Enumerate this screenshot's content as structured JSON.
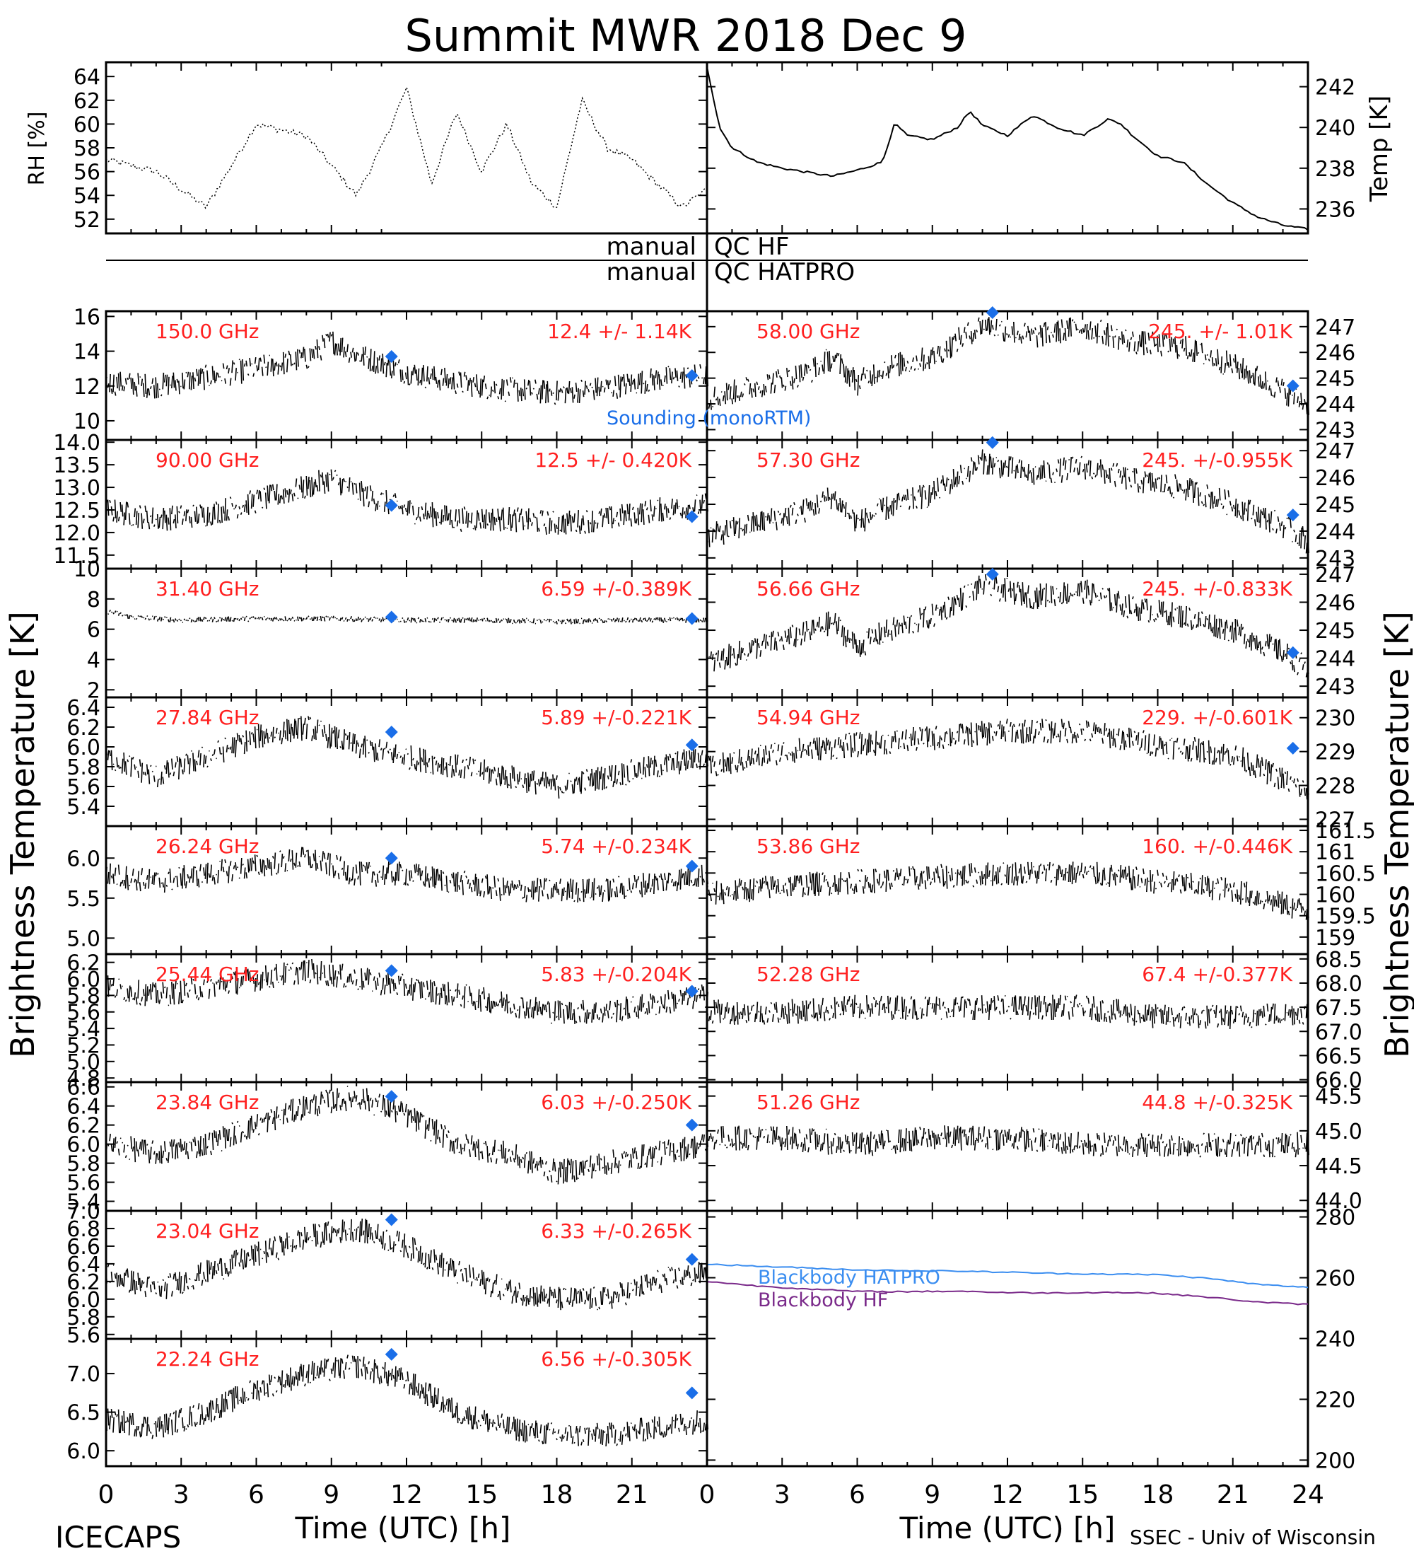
{
  "title": "Summit MWR 2018 Dec  9",
  "footer": {
    "left": "ICECAPS",
    "right": "SSEC - Univ of Wisconsin"
  },
  "xlabel": "Time (UTC) [h]",
  "x_ticks": [
    "0",
    "3",
    "6",
    "9",
    "12",
    "15",
    "18",
    "21",
    "24"
  ],
  "y_label_left": "Brightness Temperature [K]",
  "y_label_right": "Brightness Temperature [K]",
  "colors": {
    "text_red": "#ff2020",
    "marker_blue": "#1a6ee8",
    "hatpro_line": "#3a8df0",
    "hf_line": "#7a2a8a",
    "scatter": "#000000"
  },
  "qc": {
    "hf_left": "manual",
    "hf_right": "QC HF",
    "hatpro_left": "manual",
    "hatpro_right": "QC HATPRO"
  },
  "legend": {
    "sounding": "Sounding (monoRTM)",
    "bb_hatpro": "Blackbody HATPRO",
    "bb_hf": "Blackbody HF"
  },
  "chart_data": [
    {
      "type": "line",
      "panel": "rh",
      "ylabel": "RH [%]",
      "xlim": [
        0,
        12
      ],
      "ylim": [
        50.8,
        65.2
      ],
      "y_ticks": [
        "52",
        "54",
        "56",
        "58",
        "60",
        "62",
        "64"
      ],
      "y_tick_values": [
        52,
        54,
        56,
        58,
        60,
        62,
        64
      ],
      "x": [
        0,
        1,
        2,
        3,
        4,
        5,
        5.5,
        6,
        6.5,
        7,
        7.5,
        8,
        8.5,
        9,
        9.5,
        10,
        10.5,
        11,
        11.5,
        12
      ],
      "y": [
        57,
        56,
        53,
        60,
        59,
        54,
        58,
        63,
        55,
        61,
        56,
        60,
        55,
        53,
        62,
        58,
        57,
        55,
        53,
        54.5
      ]
    },
    {
      "type": "line",
      "panel": "temp",
      "ylabel": "Temp [K]",
      "xlim": [
        0,
        24
      ],
      "ylim": [
        234.8,
        243.2
      ],
      "y_ticks": [
        "236",
        "238",
        "240",
        "242"
      ],
      "y_tick_values": [
        236,
        238,
        240,
        242
      ],
      "x": [
        0,
        0.5,
        1,
        2,
        3,
        4,
        5,
        6,
        7,
        7.5,
        8,
        9,
        10,
        10.5,
        11,
        12,
        13,
        14,
        15,
        16,
        16.5,
        17,
        18,
        19,
        20,
        21,
        22,
        23,
        24
      ],
      "y": [
        243,
        240,
        239,
        238.3,
        238,
        237.8,
        237.6,
        237.9,
        238.3,
        240.2,
        239.6,
        239.4,
        240,
        240.8,
        240.1,
        239.6,
        240.6,
        240,
        239.6,
        240.4,
        240.2,
        239.6,
        238.6,
        238.3,
        237.2,
        236.3,
        235.6,
        235.2,
        235
      ]
    },
    {
      "type": "scatter",
      "panel": "L1",
      "freq": "150.0 GHz",
      "stats": "12.4 +/-  1.14K",
      "ylim": [
        8.9,
        16.3
      ],
      "y_ticks": [
        "10",
        "12",
        "14",
        "16"
      ],
      "y_tick_values": [
        10,
        12,
        14,
        16
      ],
      "sounding": [
        [
          11.4,
          13.7
        ],
        [
          23.4,
          12.6
        ]
      ],
      "x": [
        0,
        2,
        4,
        6,
        8,
        9,
        10,
        12,
        14,
        16,
        18,
        20,
        22,
        24
      ],
      "y": [
        12.2,
        12.0,
        12.5,
        13.0,
        13.6,
        14.6,
        13.8,
        12.8,
        12.2,
        11.8,
        11.6,
        11.9,
        12.4,
        12.6
      ]
    },
    {
      "type": "scatter",
      "panel": "L2",
      "freq": "90.00 GHz",
      "stats": "12.5 +/- 0.420K",
      "ylim": [
        11.2,
        14.05
      ],
      "y_ticks": [
        "11.5",
        "12.0",
        "12.5",
        "13.0",
        "13.5",
        "14.0"
      ],
      "y_tick_values": [
        11.5,
        12,
        12.5,
        13,
        13.5,
        14
      ],
      "sounding": [
        [
          11.4,
          12.6
        ],
        [
          23.4,
          12.35
        ]
      ],
      "x": [
        0,
        2,
        4,
        6,
        8,
        9,
        10,
        12,
        14,
        16,
        18,
        20,
        22,
        24
      ],
      "y": [
        12.5,
        12.3,
        12.4,
        12.7,
        13.0,
        13.2,
        12.9,
        12.5,
        12.3,
        12.3,
        12.2,
        12.3,
        12.5,
        12.6
      ]
    },
    {
      "type": "scatter",
      "panel": "L3",
      "freq": "31.40 GHz",
      "stats": "6.59 +/-0.389K",
      "ylim": [
        1.5,
        10.0
      ],
      "y_ticks": [
        "2",
        "4",
        "6",
        "8",
        "10"
      ],
      "y_tick_values": [
        2,
        4,
        6,
        8,
        10
      ],
      "sounding": [
        [
          11.4,
          6.8
        ],
        [
          23.4,
          6.7
        ]
      ],
      "x": [
        0,
        1,
        3,
        6,
        9,
        12,
        15,
        18,
        21,
        24
      ],
      "y": [
        7.2,
        6.8,
        6.6,
        6.7,
        6.7,
        6.6,
        6.6,
        6.5,
        6.6,
        6.6
      ]
    },
    {
      "type": "scatter",
      "panel": "L4",
      "freq": "27.84 GHz",
      "stats": "5.89 +/-0.221K",
      "ylim": [
        5.2,
        6.5
      ],
      "y_ticks": [
        "5.4",
        "5.6",
        "5.8",
        "6.0",
        "6.2",
        "6.4"
      ],
      "y_tick_values": [
        5.4,
        5.6,
        5.8,
        6.0,
        6.2,
        6.4
      ],
      "sounding": [
        [
          11.4,
          6.15
        ],
        [
          23.4,
          6.02
        ]
      ],
      "x": [
        0,
        2,
        4,
        6,
        8,
        10,
        12,
        14,
        16,
        18,
        20,
        22,
        24
      ],
      "y": [
        5.9,
        5.7,
        5.9,
        6.1,
        6.2,
        6.0,
        5.9,
        5.8,
        5.7,
        5.6,
        5.7,
        5.8,
        5.9
      ]
    },
    {
      "type": "scatter",
      "panel": "L5",
      "freq": "26.24 GHz",
      "stats": "5.74 +/-0.234K",
      "ylim": [
        4.8,
        6.4
      ],
      "y_ticks": [
        "5.0",
        "5.5",
        "6.0"
      ],
      "y_tick_values": [
        5,
        5.5,
        6
      ],
      "sounding": [
        [
          11.4,
          6.0
        ],
        [
          23.4,
          5.9
        ]
      ],
      "x": [
        0,
        2,
        4,
        6,
        8,
        10,
        12,
        14,
        16,
        18,
        20,
        22,
        24
      ],
      "y": [
        5.8,
        5.7,
        5.8,
        5.9,
        6.0,
        5.8,
        5.8,
        5.7,
        5.6,
        5.6,
        5.6,
        5.7,
        5.8
      ]
    },
    {
      "type": "scatter",
      "panel": "L6",
      "freq": "25.44 GHz",
      "stats": "5.83 +/-0.204K",
      "ylim": [
        4.75,
        6.3
      ],
      "y_ticks": [
        "4.8",
        "5.0",
        "5.2",
        "5.4",
        "5.6",
        "5.8",
        "6.0",
        "6.2"
      ],
      "y_tick_values": [
        4.8,
        5.0,
        5.2,
        5.4,
        5.6,
        5.8,
        6.0,
        6.2
      ],
      "sounding": [
        [
          11.4,
          6.1
        ],
        [
          23.4,
          5.85
        ]
      ],
      "x": [
        0,
        2,
        4,
        6,
        8,
        10,
        12,
        14,
        16,
        18,
        20,
        22,
        24
      ],
      "y": [
        5.9,
        5.8,
        5.9,
        6.0,
        6.1,
        6.0,
        5.9,
        5.8,
        5.7,
        5.6,
        5.6,
        5.7,
        5.8
      ]
    },
    {
      "type": "scatter",
      "panel": "L7",
      "freq": "23.84 GHz",
      "stats": "6.03 +/-0.250K",
      "ylim": [
        5.3,
        6.65
      ],
      "y_ticks": [
        "5.4",
        "5.6",
        "5.8",
        "6.0",
        "6.2",
        "6.4",
        "6.6"
      ],
      "y_tick_values": [
        5.4,
        5.6,
        5.8,
        6.0,
        6.2,
        6.4,
        6.6
      ],
      "sounding": [
        [
          11.4,
          6.5
        ],
        [
          23.4,
          6.2
        ]
      ],
      "x": [
        0,
        2,
        4,
        6,
        8,
        10,
        12,
        14,
        16,
        18,
        20,
        22,
        24
      ],
      "y": [
        6.0,
        5.9,
        6.0,
        6.2,
        6.4,
        6.5,
        6.3,
        6.0,
        5.9,
        5.7,
        5.8,
        5.9,
        6.0
      ]
    },
    {
      "type": "scatter",
      "panel": "L8",
      "freq": "23.04 GHz",
      "stats": "6.33 +/-0.265K",
      "ylim": [
        5.55,
        7.0
      ],
      "y_ticks": [
        "5.6",
        "5.8",
        "6.0",
        "6.2",
        "6.4",
        "6.6",
        "6.8",
        "7.0"
      ],
      "y_tick_values": [
        5.6,
        5.8,
        6.0,
        6.2,
        6.4,
        6.6,
        6.8,
        7.0
      ],
      "sounding": [
        [
          11.4,
          6.9
        ],
        [
          23.4,
          6.45
        ]
      ],
      "x": [
        0,
        2,
        4,
        6,
        8,
        10,
        12,
        14,
        16,
        18,
        20,
        22,
        24
      ],
      "y": [
        6.3,
        6.1,
        6.3,
        6.5,
        6.7,
        6.8,
        6.6,
        6.3,
        6.1,
        6.0,
        6.0,
        6.2,
        6.3
      ]
    },
    {
      "type": "scatter",
      "panel": "L9",
      "freq": "22.24 GHz",
      "stats": "6.56 +/-0.305K",
      "ylim": [
        5.8,
        7.45
      ],
      "y_ticks": [
        "6.0",
        "6.5",
        "7.0"
      ],
      "y_tick_values": [
        6,
        6.5,
        7
      ],
      "sounding": [
        [
          11.4,
          7.25
        ],
        [
          23.4,
          6.75
        ]
      ],
      "x": [
        0,
        2,
        4,
        6,
        8,
        10,
        12,
        14,
        16,
        18,
        20,
        22,
        24
      ],
      "y": [
        6.4,
        6.3,
        6.5,
        6.8,
        7.0,
        7.1,
        6.9,
        6.5,
        6.3,
        6.2,
        6.2,
        6.3,
        6.4
      ]
    },
    {
      "type": "scatter",
      "panel": "R1",
      "freq": "58.00 GHz",
      "stats": "245. +/- 1.01K",
      "ylim": [
        242.6,
        247.6
      ],
      "y_ticks": [
        "243",
        "244",
        "245",
        "246",
        "247"
      ],
      "y_tick_values": [
        243,
        244,
        245,
        246,
        247
      ],
      "sounding": [
        [
          11.4,
          247.6
        ],
        [
          23.4,
          244.7
        ]
      ],
      "x": [
        0,
        2,
        4,
        5,
        6,
        7,
        9,
        11,
        13,
        15,
        17,
        19,
        21,
        23,
        24
      ],
      "y": [
        244.2,
        244.7,
        245.2,
        245.8,
        244.8,
        245.4,
        245.8,
        247.1,
        246.6,
        247.0,
        246.4,
        246.2,
        245.5,
        244.5,
        244.0
      ]
    },
    {
      "type": "scatter",
      "panel": "R2",
      "freq": "57.30 GHz",
      "stats": "245. +/-0.955K",
      "ylim": [
        242.6,
        247.4
      ],
      "y_ticks": [
        "243",
        "244",
        "245",
        "246",
        "247"
      ],
      "y_tick_values": [
        243,
        244,
        245,
        246,
        247
      ],
      "sounding": [
        [
          11.4,
          247.3
        ],
        [
          23.4,
          244.6
        ]
      ],
      "x": [
        0,
        2,
        4,
        5,
        6,
        7,
        9,
        11,
        13,
        15,
        17,
        19,
        21,
        23,
        24
      ],
      "y": [
        243.8,
        244.3,
        244.8,
        245.3,
        244.3,
        244.8,
        245.4,
        246.6,
        246.1,
        246.4,
        245.9,
        245.6,
        245.0,
        244.2,
        243.6
      ]
    },
    {
      "type": "scatter",
      "panel": "R3",
      "freq": "56.66 GHz",
      "stats": "245. +/-0.833K",
      "ylim": [
        242.6,
        247.2
      ],
      "y_ticks": [
        "243",
        "244",
        "245",
        "246",
        "247"
      ],
      "y_tick_values": [
        243,
        244,
        245,
        246,
        247
      ],
      "sounding": [
        [
          11.4,
          247.0
        ],
        [
          23.4,
          244.2
        ]
      ],
      "x": [
        0,
        2,
        4,
        5,
        6,
        7,
        9,
        11,
        13,
        15,
        17,
        19,
        21,
        23,
        24
      ],
      "y": [
        243.8,
        244.4,
        244.9,
        245.3,
        244.4,
        244.9,
        245.5,
        246.6,
        246.2,
        246.4,
        245.8,
        245.5,
        245.0,
        244.2,
        243.6
      ]
    },
    {
      "type": "scatter",
      "panel": "R4",
      "freq": "54.94 GHz",
      "stats": "229. +/-0.601K",
      "ylim": [
        226.8,
        230.6
      ],
      "y_ticks": [
        "227",
        "228",
        "229",
        "230"
      ],
      "y_tick_values": [
        227,
        228,
        229,
        230
      ],
      "sounding": [
        [
          23.4,
          229.1
        ]
      ],
      "x": [
        0,
        3,
        6,
        9,
        12,
        15,
        18,
        21,
        24
      ],
      "y": [
        228.5,
        229.0,
        229.2,
        229.4,
        229.6,
        229.6,
        229.2,
        228.9,
        227.8
      ]
    },
    {
      "type": "scatter",
      "panel": "R5",
      "freq": "53.86 GHz",
      "stats": "160. +/-0.446K",
      "ylim": [
        158.6,
        161.6
      ],
      "y_ticks": [
        "159",
        "159.5",
        "160",
        "160.5",
        "161",
        "161.5"
      ],
      "y_tick_values": [
        159,
        159.5,
        160,
        160.5,
        161,
        161.5
      ],
      "sounding": [],
      "x": [
        0,
        3,
        6,
        9,
        12,
        15,
        18,
        21,
        24
      ],
      "y": [
        160.0,
        160.2,
        160.3,
        160.4,
        160.5,
        160.5,
        160.3,
        160.1,
        159.6
      ]
    },
    {
      "type": "scatter",
      "panel": "R6",
      "freq": "52.28 GHz",
      "stats": "67.4 +/-0.377K",
      "ylim": [
        65.95,
        68.6
      ],
      "y_ticks": [
        "66.0",
        "66.5",
        "67.0",
        "67.5",
        "68.0",
        "68.5"
      ],
      "y_tick_values": [
        66,
        66.5,
        67,
        67.5,
        68,
        68.5
      ],
      "sounding": [],
      "x": [
        0,
        3,
        6,
        9,
        12,
        15,
        18,
        21,
        24
      ],
      "y": [
        67.4,
        67.4,
        67.5,
        67.5,
        67.5,
        67.5,
        67.3,
        67.3,
        67.4
      ]
    },
    {
      "type": "scatter",
      "panel": "R7",
      "freq": "51.26 GHz",
      "stats": "44.8 +/-0.325K",
      "ylim": [
        43.85,
        45.7
      ],
      "y_ticks": [
        "44.0",
        "44.5",
        "45.0",
        "45.5"
      ],
      "y_tick_values": [
        44,
        44.5,
        45,
        45.5
      ],
      "sounding": [],
      "x": [
        0,
        3,
        6,
        9,
        12,
        15,
        18,
        21,
        24
      ],
      "y": [
        44.9,
        44.9,
        44.8,
        44.9,
        44.9,
        44.8,
        44.8,
        44.8,
        44.8
      ]
    },
    {
      "type": "line",
      "panel": "R8",
      "ylabel": "Temp [K]",
      "ylim": [
        198,
        282
      ],
      "y_ticks": [
        "200",
        "220",
        "240",
        "260",
        "280"
      ],
      "y_tick_values": [
        200,
        220,
        240,
        260,
        280
      ],
      "series": [
        {
          "name": "Blackbody HATPRO",
          "x": [
            0,
            2,
            4,
            6,
            8,
            10,
            12,
            14,
            16,
            18,
            20,
            22,
            24
          ],
          "y": [
            264.5,
            263.8,
            263.2,
            262.6,
            262.3,
            262.2,
            261.8,
            261.4,
            261.2,
            261.0,
            259.8,
            257.8,
            256.8
          ]
        },
        {
          "name": "Blackbody HF",
          "x": [
            0,
            2,
            4,
            6,
            8,
            10,
            12,
            14,
            16,
            18,
            20,
            22,
            24
          ],
          "y": [
            258.8,
            257.3,
            256.3,
            255.5,
            255.4,
            255.6,
            255.1,
            255.0,
            255.2,
            254.9,
            253.6,
            252.0,
            251.2
          ]
        }
      ]
    }
  ]
}
